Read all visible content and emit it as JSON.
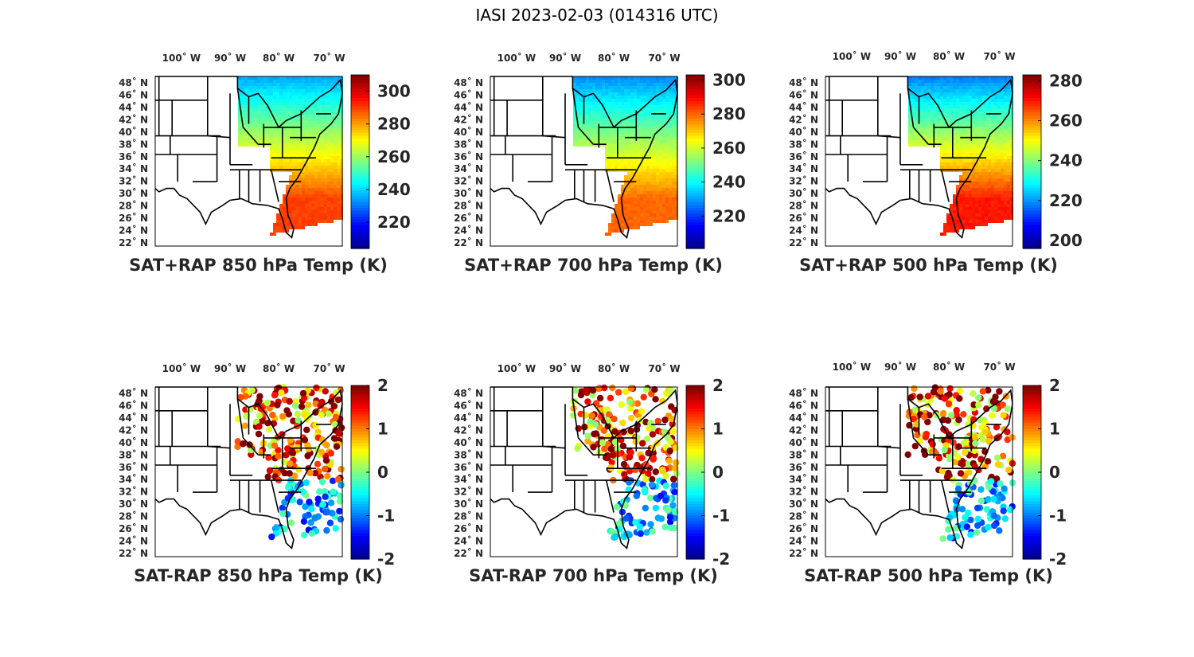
{
  "title": "IASI 2023-02-03 (014316 UTC)",
  "colormap": [
    "#00008f",
    "#0000ff",
    "#0080ff",
    "#00ffff",
    "#80ff80",
    "#ffff00",
    "#ff8000",
    "#ff0000",
    "#800000"
  ],
  "lon_ticks": [
    "100˚ W",
    "90˚ W",
    "80˚ W",
    "70˚ W"
  ],
  "lat_ticks": [
    "48˚ N",
    "46˚ N",
    "44˚ N",
    "42˚ N",
    "40˚ N",
    "38˚ N",
    "36˚ N",
    "34˚ N",
    "32˚ N",
    "30˚ N",
    "28˚ N",
    "26˚ N",
    "24˚ N",
    "22˚ N"
  ],
  "chart_data": [
    {
      "type": "heatmap",
      "title": "SAT+RAP 850 hPa Temp (K)",
      "field": "combined",
      "clim": [
        204,
        310
      ],
      "colorbar_ticks": [
        220,
        240,
        260,
        280,
        300
      ],
      "xlim": [
        -106,
        -67
      ],
      "ylim": [
        22,
        50
      ]
    },
    {
      "type": "heatmap",
      "title": "SAT+RAP 700 hPa Temp (K)",
      "field": "combined",
      "clim": [
        201,
        303
      ],
      "colorbar_ticks": [
        220,
        240,
        260,
        280,
        300
      ],
      "xlim": [
        -106,
        -67
      ],
      "ylim": [
        22,
        50
      ]
    },
    {
      "type": "heatmap",
      "title": "SAT+RAP 500 hPa Temp (K)",
      "field": "combined",
      "clim": [
        196,
        283
      ],
      "colorbar_ticks": [
        200,
        220,
        240,
        260,
        280
      ],
      "xlim": [
        -106,
        -67
      ],
      "ylim": [
        22,
        50
      ]
    },
    {
      "type": "scatter",
      "title": "SAT-RAP 850 hPa Temp (K)",
      "field": "difference",
      "clim": [
        -2,
        2
      ],
      "colorbar_ticks": [
        -2,
        -1,
        0,
        1,
        2
      ],
      "xlim": [
        -106,
        -67
      ],
      "ylim": [
        22,
        50
      ]
    },
    {
      "type": "scatter",
      "title": "SAT-RAP 700 hPa Temp (K)",
      "field": "difference",
      "clim": [
        -2,
        2
      ],
      "colorbar_ticks": [
        -2,
        -1,
        0,
        1,
        2
      ],
      "xlim": [
        -106,
        -67
      ],
      "ylim": [
        22,
        50
      ]
    },
    {
      "type": "scatter",
      "title": "SAT-RAP 500 hPa Temp (K)",
      "field": "difference",
      "clim": [
        -2,
        2
      ],
      "colorbar_ticks": [
        -2,
        -1,
        0,
        1,
        2
      ],
      "xlim": [
        -106,
        -67
      ],
      "ylim": [
        22,
        50
      ]
    }
  ]
}
